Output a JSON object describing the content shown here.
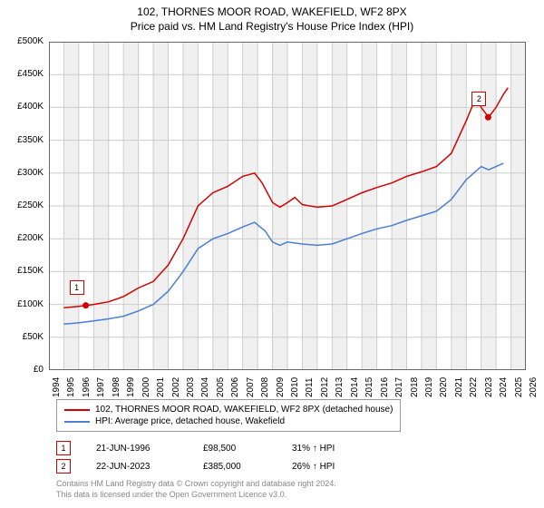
{
  "title_line1": "102, THORNES MOOR ROAD, WAKEFIELD, WF2 8PX",
  "title_line2": "Price paid vs. HM Land Registry's House Price Index (HPI)",
  "chart": {
    "type": "line",
    "background_color": "#ffffff",
    "grid_band_color": "#f0f0f0",
    "grid_line_color": "#cccccc",
    "x_min": 1994,
    "x_max": 2026,
    "x_ticks": [
      1994,
      1995,
      1996,
      1997,
      1998,
      1999,
      2000,
      2001,
      2002,
      2003,
      2004,
      2005,
      2006,
      2007,
      2008,
      2009,
      2010,
      2011,
      2012,
      2013,
      2014,
      2015,
      2016,
      2017,
      2018,
      2019,
      2020,
      2021,
      2022,
      2023,
      2024,
      2025,
      2026
    ],
    "y_min": 0,
    "y_max": 500000,
    "y_tick_step": 50000,
    "y_tick_labels": [
      "£0",
      "£50K",
      "£100K",
      "£150K",
      "£200K",
      "£250K",
      "£300K",
      "£350K",
      "£400K",
      "£450K",
      "£500K"
    ],
    "series": [
      {
        "name": "102, THORNES MOOR ROAD, WAKEFIELD, WF2 8PX (detached house)",
        "color": "#d40000",
        "line_width": 1.5,
        "points": [
          [
            1995.0,
            95000
          ],
          [
            1996.0,
            97000
          ],
          [
            1996.5,
            98500
          ],
          [
            1997.0,
            100000
          ],
          [
            1998.0,
            104000
          ],
          [
            1999.0,
            112000
          ],
          [
            2000.0,
            125000
          ],
          [
            2001.0,
            135000
          ],
          [
            2002.0,
            160000
          ],
          [
            2003.0,
            200000
          ],
          [
            2004.0,
            250000
          ],
          [
            2005.0,
            270000
          ],
          [
            2006.0,
            280000
          ],
          [
            2007.0,
            295000
          ],
          [
            2007.8,
            300000
          ],
          [
            2008.3,
            285000
          ],
          [
            2009.0,
            255000
          ],
          [
            2009.5,
            248000
          ],
          [
            2010.0,
            255000
          ],
          [
            2010.5,
            263000
          ],
          [
            2011.0,
            252000
          ],
          [
            2012.0,
            248000
          ],
          [
            2013.0,
            250000
          ],
          [
            2014.0,
            260000
          ],
          [
            2015.0,
            270000
          ],
          [
            2016.0,
            278000
          ],
          [
            2017.0,
            285000
          ],
          [
            2018.0,
            295000
          ],
          [
            2019.0,
            302000
          ],
          [
            2020.0,
            310000
          ],
          [
            2021.0,
            330000
          ],
          [
            2022.0,
            380000
          ],
          [
            2022.7,
            418000
          ],
          [
            2023.0,
            400000
          ],
          [
            2023.5,
            385000
          ],
          [
            2024.0,
            400000
          ],
          [
            2024.5,
            420000
          ],
          [
            2024.8,
            430000
          ]
        ]
      },
      {
        "name": "HPI: Average price, detached house, Wakefield",
        "color": "#4a7fd4",
        "line_width": 1.5,
        "points": [
          [
            1995.0,
            70000
          ],
          [
            1996.0,
            72000
          ],
          [
            1997.0,
            75000
          ],
          [
            1998.0,
            78000
          ],
          [
            1999.0,
            82000
          ],
          [
            2000.0,
            90000
          ],
          [
            2001.0,
            100000
          ],
          [
            2002.0,
            120000
          ],
          [
            2003.0,
            150000
          ],
          [
            2004.0,
            185000
          ],
          [
            2005.0,
            200000
          ],
          [
            2006.0,
            208000
          ],
          [
            2007.0,
            218000
          ],
          [
            2007.8,
            225000
          ],
          [
            2008.5,
            212000
          ],
          [
            2009.0,
            195000
          ],
          [
            2009.5,
            190000
          ],
          [
            2010.0,
            195000
          ],
          [
            2011.0,
            192000
          ],
          [
            2012.0,
            190000
          ],
          [
            2013.0,
            192000
          ],
          [
            2014.0,
            200000
          ],
          [
            2015.0,
            208000
          ],
          [
            2016.0,
            215000
          ],
          [
            2017.0,
            220000
          ],
          [
            2018.0,
            228000
          ],
          [
            2019.0,
            235000
          ],
          [
            2020.0,
            242000
          ],
          [
            2021.0,
            260000
          ],
          [
            2022.0,
            290000
          ],
          [
            2023.0,
            310000
          ],
          [
            2023.5,
            305000
          ],
          [
            2024.0,
            310000
          ],
          [
            2024.5,
            315000
          ]
        ]
      }
    ],
    "sale_markers": [
      {
        "id": "1",
        "x": 1996.47,
        "y": 98500,
        "color": "#d40000"
      },
      {
        "id": "2",
        "x": 2023.47,
        "y": 385000,
        "color": "#d40000"
      }
    ],
    "marker_radius": 3.5,
    "marker_box_offset_y": -28,
    "axis_fontsize": 10,
    "title_fontsize": 12
  },
  "legend": {
    "items": [
      {
        "color": "#d40000",
        "label": "102, THORNES MOOR ROAD, WAKEFIELD, WF2 8PX (detached house)"
      },
      {
        "color": "#4a7fd4",
        "label": "HPI: Average price, detached house, Wakefield"
      }
    ]
  },
  "sales_table": [
    {
      "marker": "1",
      "color": "#d40000",
      "date": "21-JUN-1996",
      "price": "£98,500",
      "delta": "31% ↑ HPI"
    },
    {
      "marker": "2",
      "color": "#d40000",
      "date": "22-JUN-2023",
      "price": "£385,000",
      "delta": "26% ↑ HPI"
    }
  ],
  "footer_line1": "Contains HM Land Registry data © Crown copyright and database right 2024.",
  "footer_line2": "This data is licensed under the Open Government Licence v3.0."
}
